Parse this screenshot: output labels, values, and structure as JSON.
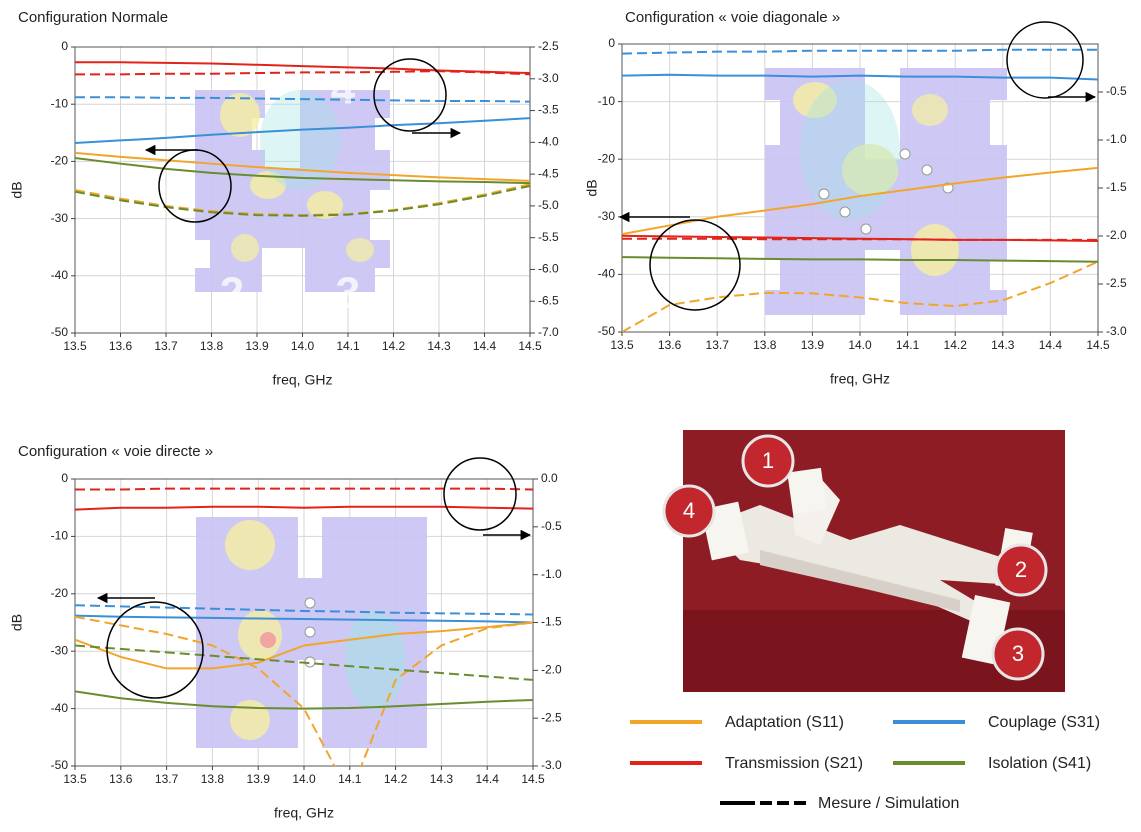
{
  "chart_data": [
    {
      "type": "line",
      "title": "Configuration Normale",
      "x_label": "freq, GHz",
      "y_label": "dB",
      "grid": true,
      "x": [
        13.5,
        13.6,
        13.7,
        13.8,
        13.9,
        14.0,
        14.1,
        14.2,
        14.3,
        14.4,
        14.5
      ],
      "xlim": [
        13.5,
        14.5
      ],
      "xticks": [
        13.5,
        13.6,
        13.7,
        13.8,
        13.9,
        {
          "value": 14,
          "label": "14.0"
        },
        14.1,
        14.2,
        14.3,
        14.4,
        14.5
      ],
      "ylim": [
        -50,
        0
      ],
      "yticks": [
        0,
        -10,
        -20,
        -30,
        -40,
        -50
      ],
      "y2lim": [
        -7,
        -2.5
      ],
      "y2ticks": [
        -2.5,
        {
          "value": -3,
          "label": "-3.0"
        },
        -3.5,
        {
          "value": -4,
          "label": "-4.0"
        },
        -4.5,
        {
          "value": -5,
          "label": "-5.0"
        },
        -5.5,
        {
          "value": -6,
          "label": "-6.0"
        },
        -6.5,
        {
          "value": -7,
          "label": "-7.0"
        }
      ],
      "annotations": [
        "4",
        "2",
        "3"
      ],
      "series": [
        {
          "color": "#f2a52a",
          "dashed": false,
          "axis": "y",
          "values": [
            -18.5,
            -19.2,
            -19.8,
            -20.4,
            -21,
            -21.5,
            -22,
            -22.4,
            -22.8,
            -23.1,
            -23.4
          ]
        },
        {
          "color": "#f2a52a",
          "dashed": true,
          "axis": "y",
          "values": [
            -25,
            -26.5,
            -27.8,
            -28.7,
            -29.2,
            -29.4,
            -29.2,
            -28.5,
            -27.3,
            -25.8,
            -24
          ]
        },
        {
          "color": "#e2231a",
          "dashed": false,
          "axis": "y2",
          "values": [
            -2.74,
            -2.74,
            -2.75,
            -2.76,
            -2.78,
            -2.8,
            -2.82,
            -2.84,
            -2.87,
            -2.89,
            -2.91
          ]
        },
        {
          "color": "#e2231a",
          "dashed": true,
          "axis": "y2",
          "values": [
            -2.93,
            -2.93,
            -2.92,
            -2.92,
            -2.91,
            -2.9,
            -2.9,
            -2.89,
            -2.88,
            -2.9,
            -2.93
          ]
        },
        {
          "color": "#3a8fd9",
          "dashed": false,
          "axis": "y2",
          "values": [
            -4.01,
            -3.97,
            -3.93,
            -3.88,
            -3.84,
            -3.8,
            -3.77,
            -3.73,
            -3.7,
            -3.66,
            -3.62
          ]
        },
        {
          "color": "#3a8fd9",
          "dashed": true,
          "axis": "y2",
          "values": [
            -3.29,
            -3.29,
            -3.3,
            -3.3,
            -3.31,
            -3.32,
            -3.33,
            -3.34,
            -3.35,
            -3.35,
            -3.36
          ]
        },
        {
          "color": "#6a8c2e",
          "dashed": false,
          "axis": "y",
          "values": [
            -19.4,
            -20.4,
            -21.3,
            -22,
            -22.5,
            -22.9,
            -23.1,
            -23.3,
            -23.5,
            -23.6,
            -23.8
          ]
        },
        {
          "color": "#6a8c2e",
          "dashed": true,
          "axis": "y",
          "values": [
            -25.3,
            -26.8,
            -28,
            -28.9,
            -29.4,
            -29.5,
            -29.3,
            -28.6,
            -27.5,
            -26,
            -24.3
          ]
        }
      ]
    },
    {
      "type": "line",
      "title": "Configuration  « voie diagonale »",
      "x_label": "freq, GHz",
      "y_label": "dB",
      "grid": true,
      "x": [
        13.5,
        13.6,
        13.7,
        13.8,
        13.9,
        14.0,
        14.1,
        14.2,
        14.3,
        14.4,
        14.5
      ],
      "xlim": [
        13.5,
        14.5
      ],
      "xticks": [
        13.5,
        13.6,
        13.7,
        13.8,
        13.9,
        {
          "value": 14,
          "label": "14.0"
        },
        14.1,
        14.2,
        14.3,
        14.4,
        14.5
      ],
      "ylim": [
        -50,
        0
      ],
      "yticks": [
        0,
        -10,
        -20,
        -30,
        -40,
        -50
      ],
      "y2lim": [
        -3,
        0
      ],
      "y2ticks": [
        -0.5,
        {
          "value": -1,
          "label": "-1.0"
        },
        -1.5,
        {
          "value": -2,
          "label": "-2.0"
        },
        -2.5,
        {
          "value": -3,
          "label": "-3.0"
        }
      ],
      "series": [
        {
          "color": "#f2a52a",
          "dashed": false,
          "axis": "y",
          "values": [
            -33,
            -31.5,
            -30,
            -28.9,
            -27.8,
            -26.4,
            -25.3,
            -24.2,
            -23.2,
            -22.3,
            -21.5
          ]
        },
        {
          "color": "#f2a52a",
          "dashed": true,
          "axis": "y",
          "values": [
            -50,
            -45.3,
            -44,
            -43.2,
            -43.3,
            -44,
            -45,
            -45.5,
            -44.5,
            -41.5,
            -37.8
          ]
        },
        {
          "color": "#e2231a",
          "dashed": false,
          "axis": "y",
          "values": [
            -33.3,
            -33.4,
            -33.5,
            -33.6,
            -33.7,
            -33.8,
            -33.9,
            -34,
            -34,
            -34.1,
            -34.2
          ]
        },
        {
          "color": "#e2231a",
          "dashed": true,
          "axis": "y",
          "values": [
            -33.8,
            -33.8,
            -33.8,
            -33.9,
            -33.9,
            -33.9,
            -33.9,
            -34,
            -34,
            -34,
            -34
          ]
        },
        {
          "color": "#3a8fd9",
          "dashed": false,
          "axis": "y2",
          "values": [
            -0.33,
            -0.32,
            -0.33,
            -0.33,
            -0.34,
            -0.33,
            -0.34,
            -0.34,
            -0.35,
            -0.35,
            -0.37
          ]
        },
        {
          "color": "#3a8fd9",
          "dashed": true,
          "axis": "y2",
          "values": [
            -0.1,
            -0.09,
            -0.08,
            -0.08,
            -0.07,
            -0.07,
            -0.07,
            -0.07,
            -0.06,
            -0.06,
            -0.06
          ]
        },
        {
          "color": "#6a8c2e",
          "dashed": false,
          "axis": "y",
          "values": [
            -37,
            -37.1,
            -37.2,
            -37.3,
            -37.4,
            -37.4,
            -37.5,
            -37.5,
            -37.6,
            -37.7,
            -37.8
          ]
        }
      ]
    },
    {
      "type": "line",
      "title": "Configuration « voie directe »",
      "x_label": "freq, GHz",
      "y_label": "dB",
      "grid": true,
      "x": [
        13.5,
        13.6,
        13.7,
        13.8,
        13.9,
        14.0,
        14.1,
        14.2,
        14.3,
        14.4,
        14.5
      ],
      "xlim": [
        13.5,
        14.5
      ],
      "xticks": [
        13.5,
        13.6,
        13.7,
        13.8,
        13.9,
        {
          "value": 14,
          "label": "14.0"
        },
        14.1,
        14.2,
        14.3,
        14.4,
        14.5
      ],
      "ylim": [
        -50,
        0
      ],
      "yticks": [
        0,
        -10,
        -20,
        -30,
        -40,
        -50
      ],
      "y2lim": [
        -3,
        0
      ],
      "y2ticks": [
        {
          "value": 0,
          "label": "0.0"
        },
        -0.5,
        {
          "value": -1,
          "label": "-1.0"
        },
        -1.5,
        {
          "value": -2,
          "label": "-2.0"
        },
        -2.5,
        {
          "value": -3,
          "label": "-3.0"
        }
      ],
      "series": [
        {
          "color": "#e2231a",
          "dashed": true,
          "axis": "y2",
          "values": [
            -0.11,
            -0.11,
            -0.1,
            -0.1,
            -0.1,
            -0.1,
            -0.1,
            -0.1,
            -0.1,
            -0.1,
            -0.11
          ]
        },
        {
          "color": "#e2231a",
          "dashed": false,
          "axis": "y2",
          "values": [
            -0.32,
            -0.3,
            -0.3,
            -0.29,
            -0.29,
            -0.3,
            -0.29,
            -0.29,
            -0.29,
            -0.3,
            -0.31
          ]
        },
        {
          "color": "#3a8fd9",
          "dashed": true,
          "axis": "y",
          "values": [
            -22,
            -22.2,
            -22.4,
            -22.6,
            -22.8,
            -23,
            -23.1,
            -23.3,
            -23.4,
            -23.5,
            -23.6
          ]
        },
        {
          "color": "#3a8fd9",
          "dashed": false,
          "axis": "y",
          "values": [
            -23.8,
            -24,
            -24.1,
            -24.2,
            -24.3,
            -24.4,
            -24.5,
            -24.6,
            -24.7,
            -24.8,
            -25
          ]
        },
        {
          "color": "#f2a52a",
          "dashed": false,
          "axis": "y",
          "values": [
            -28,
            -31,
            -33,
            -33,
            -32,
            -29,
            -28,
            -27,
            -26.5,
            -25.8,
            -25
          ]
        },
        {
          "color": "#f2a52a",
          "dashed": true,
          "axis": "y",
          "values": [
            -24,
            -25.5,
            -27,
            -29,
            -33,
            -40,
            -55,
            -35,
            -29,
            -26,
            -25
          ]
        },
        {
          "color": "#6a8c2e",
          "dashed": true,
          "axis": "y",
          "values": [
            -29,
            -29.6,
            -30.2,
            -30.8,
            -31.4,
            -32,
            -32.6,
            -33.2,
            -33.8,
            -34.4,
            -35
          ]
        },
        {
          "color": "#6a8c2e",
          "dashed": false,
          "axis": "y",
          "values": [
            -37,
            -38.2,
            -39,
            -39.6,
            -39.9,
            -40,
            -39.9,
            -39.6,
            -39.2,
            -38.8,
            -38.5
          ]
        }
      ]
    }
  ],
  "legend": {
    "entries": [
      {
        "name": "Adaptation (S11)",
        "color": "#f2a52a"
      },
      {
        "name": "Couplage (S31)",
        "color": "#3a8fd9"
      },
      {
        "name": "Transmission (S21)",
        "color": "#e2231a"
      },
      {
        "name": "Isolation (S41)",
        "color": "#6a8c2e"
      }
    ],
    "style_label": "Mesure / Simulation"
  },
  "photo": {
    "port_labels": [
      "1",
      "4",
      "2",
      "3"
    ]
  }
}
